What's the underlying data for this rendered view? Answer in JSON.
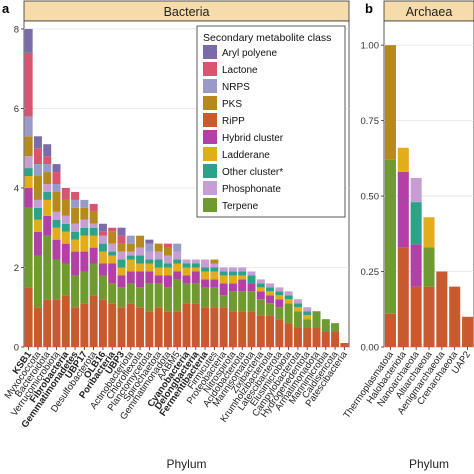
{
  "panels": [
    {
      "letter": "a",
      "strip_title": "Bacteria"
    },
    {
      "letter": "b",
      "strip_title": "Archaea"
    }
  ],
  "legend": {
    "title": "Secondary metabolite class",
    "entries": [
      {
        "label": "Aryl polyene",
        "color": "#7b6ba8"
      },
      {
        "label": "Lactone",
        "color": "#d9546e"
      },
      {
        "label": "NRPS",
        "color": "#9a9ac8"
      },
      {
        "label": "PKS",
        "color": "#b6891c"
      },
      {
        "label": "RiPP",
        "color": "#c95a2e"
      },
      {
        "label": "Hybrid cluster",
        "color": "#b43fa6"
      },
      {
        "label": "Ladderane",
        "color": "#e2ad1a"
      },
      {
        "label": "Other cluster*",
        "color": "#2aa388"
      },
      {
        "label": "Phosphonate",
        "color": "#c79ed3"
      },
      {
        "label": "Terpene",
        "color": "#6f9a30"
      }
    ]
  },
  "chart_data": [
    {
      "type": "bar",
      "stacked": true,
      "panel": "a",
      "title": "Bacteria",
      "xlabel": "Phylum",
      "ylabel": "",
      "ylim": [
        0,
        8.2
      ],
      "yticks": [
        0,
        2,
        4,
        6,
        8
      ],
      "grid": true,
      "legend_position": "top-right",
      "bold_categories": [
        "KSB1",
        "Fibrobacteria",
        "Gemmatimonadetes",
        "UBP17",
        "OLB16",
        "Poribacteria",
        "UBP3",
        "Cyanobacteria",
        "Delongbacteria",
        "Fermentibacteria"
      ],
      "categories": [
        "KSB1",
        "Myxococcota",
        "Bacteroidota",
        "Verrucomicrobiota",
        "Fibrobacteria",
        "Gemmatimonadetes",
        "UBP17",
        "Desulfobacterota",
        "OLB16",
        "Poribacteria",
        "UBP3",
        "Actinobacteriota",
        "Chloroflexota",
        "Planctomycetota",
        "Spirochaetota",
        "Gemmatimonadota",
        "AABM5",
        "Cyanobacteria",
        "Delongbacteria",
        "Fermentibacteria",
        "Firmicutes",
        "Proteobacteria",
        "Nitrospirota",
        "Acidobacteriota",
        "Marinisomatota",
        "Zixibacteria",
        "Krumholzibacteriota",
        "Latescibacterota",
        "Elusimicrobiota",
        "Campylobacterota",
        "Hydrogenedentota",
        "Armatimonadota",
        "Marinimicrobia",
        "Caldisericota",
        "Patescibacteria"
      ],
      "series": [
        {
          "name": "Aryl polyene",
          "values": [
            0.6,
            0.3,
            0.3,
            0.2,
            0,
            0,
            0,
            0,
            0.2,
            0,
            0.2,
            0,
            0,
            0.1,
            0,
            0,
            0,
            0,
            0,
            0,
            0,
            0,
            0,
            0,
            0,
            0,
            0,
            0,
            0,
            0,
            0,
            0,
            0,
            0,
            0
          ]
        },
        {
          "name": "Lactone",
          "values": [
            1.6,
            0.4,
            0.2,
            0.3,
            0.3,
            0.2,
            0,
            0.2,
            0.1,
            0.1,
            0.2,
            0,
            0,
            0,
            0,
            0.1,
            0,
            0,
            0,
            0,
            0,
            0,
            0,
            0,
            0,
            0,
            0,
            0,
            0,
            0,
            0,
            0,
            0,
            0,
            0
          ]
        },
        {
          "name": "NRPS",
          "values": [
            0.5,
            0.3,
            0.2,
            0.2,
            0,
            0.2,
            0.2,
            0,
            0,
            0,
            0,
            0.2,
            0,
            0.2,
            0,
            0,
            0.2,
            0,
            0,
            0,
            0,
            0,
            0,
            0,
            0,
            0,
            0,
            0,
            0,
            0,
            0,
            0,
            0,
            0,
            0
          ]
        },
        {
          "name": "PKS",
          "values": [
            0.5,
            0.6,
            0.3,
            0.5,
            0.4,
            0.4,
            0.3,
            0.3,
            0,
            0.3,
            0.2,
            0.2,
            0.3,
            0,
            0.2,
            0.2,
            0,
            0,
            0,
            0,
            0.1,
            0,
            0,
            0,
            0,
            0,
            0,
            0,
            0,
            0,
            0,
            0,
            0,
            0,
            0
          ]
        },
        {
          "name": "RiPP",
          "values": [
            1.5,
            1.0,
            1.2,
            1.2,
            1.3,
            1.0,
            1.1,
            1.3,
            1.2,
            1.1,
            1.0,
            1.1,
            1.0,
            0.9,
            1.0,
            0.9,
            0.9,
            1.1,
            1.1,
            1.0,
            1.0,
            1.0,
            0.9,
            0.9,
            0.9,
            0.8,
            0.8,
            0.7,
            0.6,
            0.5,
            0.5,
            0.5,
            0.4,
            0.4,
            0.1
          ]
        },
        {
          "name": "Hybrid cluster",
          "values": [
            0.5,
            0.6,
            0.5,
            0.5,
            0.5,
            0.6,
            0.5,
            0.4,
            0.3,
            0.5,
            0.3,
            0.3,
            0.4,
            0.3,
            0.2,
            0.3,
            0.2,
            0.2,
            0.3,
            0.2,
            0.2,
            0.3,
            0.2,
            0.3,
            0.2,
            0.2,
            0.2,
            0.2,
            0,
            0,
            0,
            0,
            0,
            0,
            0
          ]
        },
        {
          "name": "Ladderane",
          "values": [
            0.3,
            0.3,
            0.4,
            0.3,
            0.3,
            0.3,
            0.4,
            0.3,
            0.3,
            0.2,
            0.2,
            0.3,
            0.2,
            0.2,
            0.2,
            0.2,
            0.2,
            0.2,
            0.1,
            0.2,
            0.2,
            0.2,
            0.2,
            0.1,
            0,
            0.1,
            0.1,
            0.1,
            0.1,
            0.1,
            0.1,
            0,
            0,
            0,
            0
          ]
        },
        {
          "name": "Other cluster*",
          "values": [
            0.2,
            0.3,
            0.2,
            0.2,
            0.2,
            0.2,
            0.2,
            0.2,
            0.2,
            0.1,
            0.2,
            0.1,
            0.2,
            0.1,
            0.2,
            0.1,
            0.1,
            0.1,
            0.1,
            0.1,
            0.1,
            0.1,
            0.1,
            0.1,
            0.2,
            0.1,
            0.1,
            0.1,
            0.1,
            0.1,
            0.1,
            0,
            0,
            0,
            0
          ]
        },
        {
          "name": "Phosphonate",
          "values": [
            0.3,
            0.2,
            0.2,
            0.2,
            0.2,
            0.2,
            0.2,
            0.1,
            0.2,
            0.2,
            0.2,
            0.1,
            0.2,
            0.2,
            0.2,
            0.2,
            0.2,
            0.1,
            0.1,
            0.2,
            0.1,
            0.1,
            0.1,
            0.1,
            0.1,
            0.1,
            0.1,
            0.1,
            0.1,
            0.1,
            0.1,
            0,
            0,
            0,
            0
          ]
        },
        {
          "name": "Terpene",
          "values": [
            2.0,
            1.3,
            1.6,
            1.0,
            0.8,
            0.8,
            0.8,
            0.8,
            0.6,
            0.5,
            0.5,
            0.5,
            0.5,
            0.7,
            0.6,
            0.6,
            0.8,
            0.5,
            0.5,
            0.5,
            0.5,
            0.3,
            0.5,
            0.5,
            0.5,
            0.4,
            0.3,
            0.3,
            0.5,
            0.4,
            0.2,
            0.4,
            0.3,
            0.2,
            0
          ]
        }
      ]
    },
    {
      "type": "bar",
      "stacked": true,
      "panel": "b",
      "title": "Archaea",
      "xlabel": "Phylum",
      "ylabel": "",
      "ylim": [
        0,
        1.08
      ],
      "yticks": [
        0,
        0.25,
        0.5,
        0.75,
        1.0
      ],
      "ytick_labels": [
        "0.00",
        "0.25",
        "0.50",
        "0.75",
        "1.00"
      ],
      "grid": true,
      "categories": [
        "Thermoplasmatota",
        "Halobacteriota",
        "Nanoarchaeota",
        "Altiarchaeota",
        "Aenigmarchaeota",
        "Crenarchaeota",
        "UAP2"
      ],
      "series": [
        {
          "name": "Aryl polyene",
          "values": [
            0,
            0,
            0,
            0,
            0,
            0,
            0
          ]
        },
        {
          "name": "Lactone",
          "values": [
            0,
            0,
            0,
            0,
            0,
            0,
            0
          ]
        },
        {
          "name": "NRPS",
          "values": [
            0,
            0,
            0,
            0,
            0,
            0,
            0
          ]
        },
        {
          "name": "PKS",
          "values": [
            0.38,
            0,
            0,
            0,
            0,
            0,
            0
          ]
        },
        {
          "name": "RiPP",
          "values": [
            0.11,
            0.33,
            0.2,
            0.2,
            0.25,
            0.2,
            0.1
          ]
        },
        {
          "name": "Hybrid cluster",
          "values": [
            0,
            0.25,
            0.14,
            0,
            0,
            0,
            0
          ]
        },
        {
          "name": "Ladderane",
          "values": [
            0,
            0.08,
            0,
            0.1,
            0,
            0,
            0
          ]
        },
        {
          "name": "Other cluster*",
          "values": [
            0,
            0,
            0.14,
            0,
            0,
            0,
            0
          ]
        },
        {
          "name": "Phosphonate",
          "values": [
            0,
            0,
            0.08,
            0,
            0,
            0,
            0
          ]
        },
        {
          "name": "Terpene",
          "values": [
            0.51,
            0,
            0,
            0.13,
            0,
            0,
            0
          ]
        }
      ]
    }
  ]
}
